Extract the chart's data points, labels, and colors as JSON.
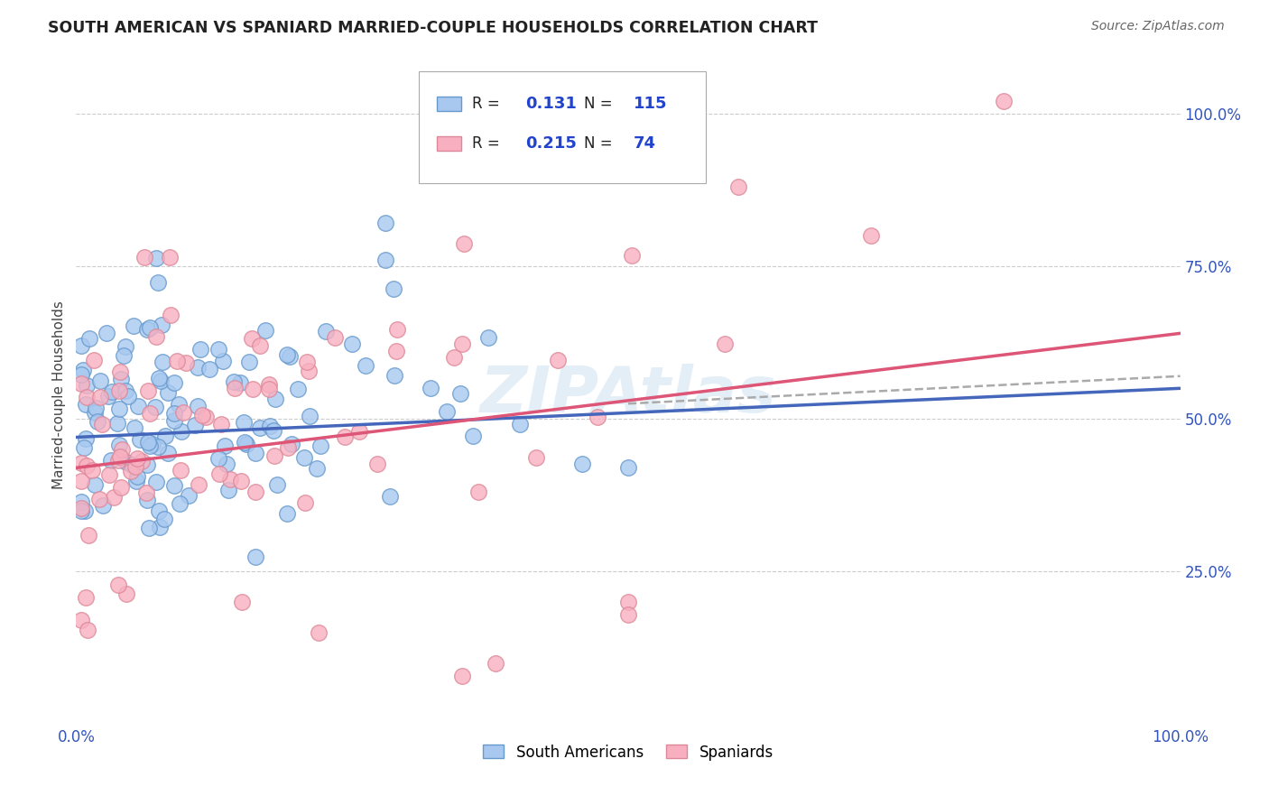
{
  "title": "SOUTH AMERICAN VS SPANIARD MARRIED-COUPLE HOUSEHOLDS CORRELATION CHART",
  "source": "Source: ZipAtlas.com",
  "ylabel": "Married-couple Households",
  "blue_scatter_color": "#a8c8f0",
  "blue_edge_color": "#6699cc",
  "pink_scatter_color": "#f8b0c0",
  "pink_edge_color": "#dd8898",
  "blue_line_color": "#4466bb",
  "pink_line_color": "#dd5577",
  "dash_line_color": "#aaaaaa",
  "watermark_color": "#c8dff0",
  "tick_color": "#3355bb",
  "title_color": "#222222",
  "source_color": "#666666",
  "grid_color": "#cccccc",
  "sa_R": "0.131",
  "sa_N": "115",
  "sp_R": "0.215",
  "sp_N": "74",
  "legend_label_color": "#222222",
  "legend_value_color": "#2244cc"
}
